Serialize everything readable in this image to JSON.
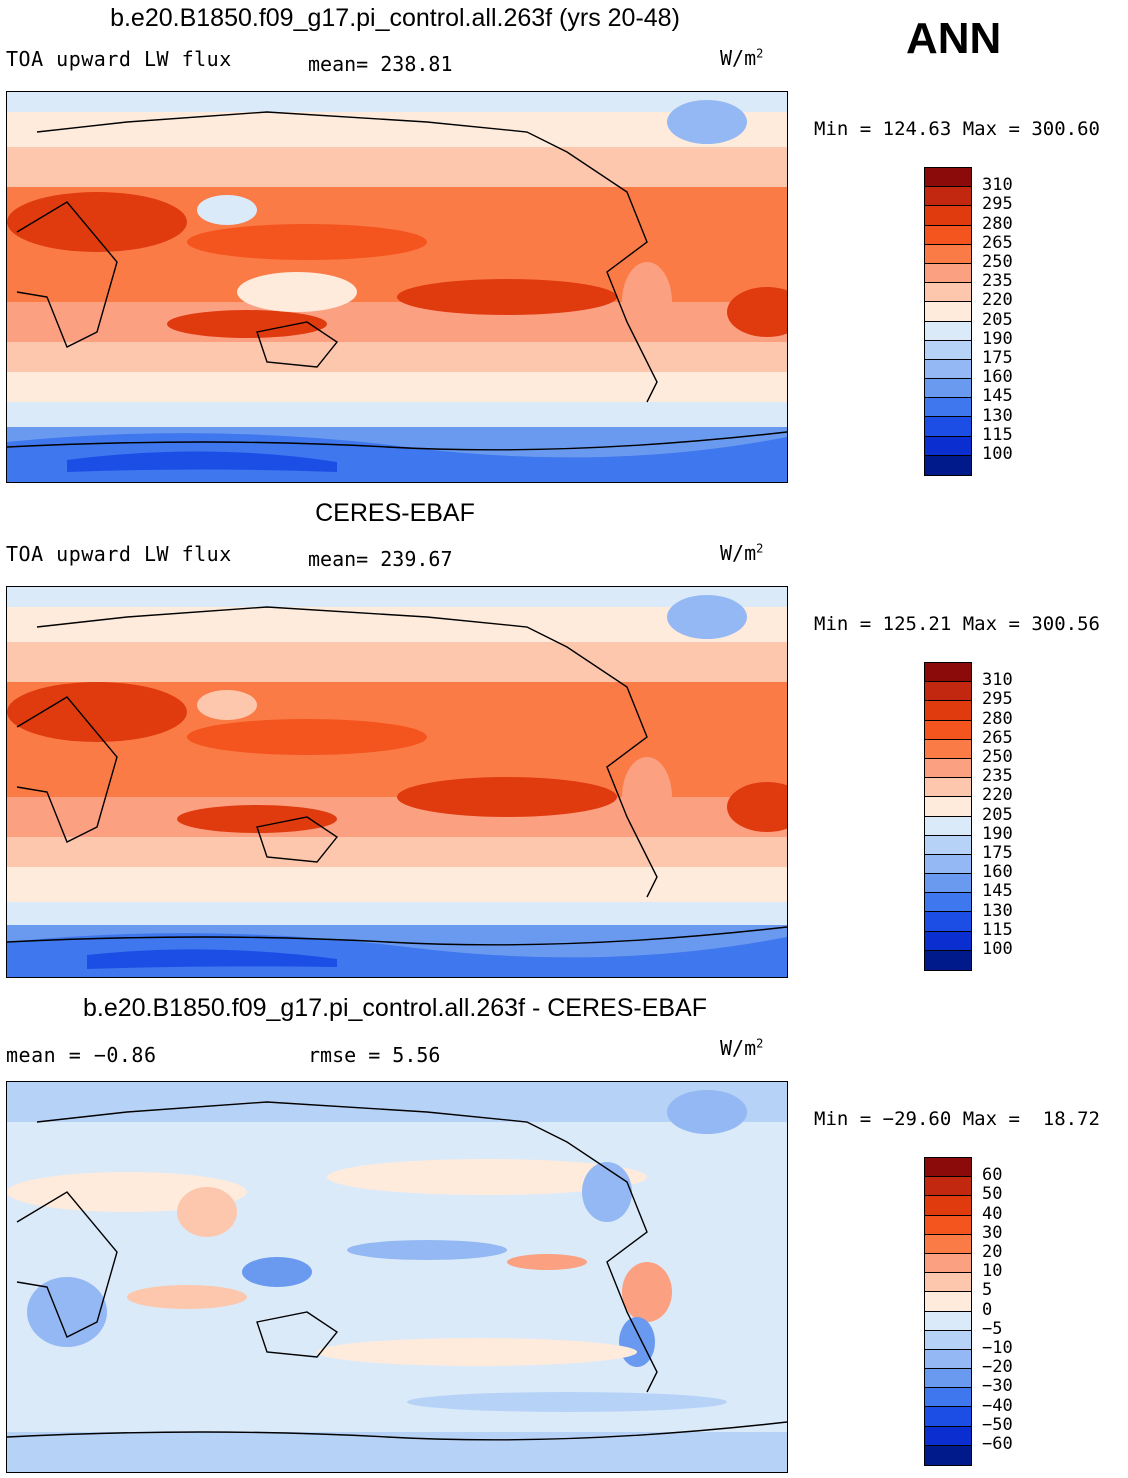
{
  "season": "ANN",
  "panels": [
    {
      "title": "b.e20.B1850.f09_g17.pi_control.all.263f (yrs 20-48)",
      "subtitle_left": "TOA upward LW flux",
      "subtitle_mid": "mean= 238.81",
      "units": "W/m",
      "units_sup": "2",
      "minmax": "Min = 124.63 Max = 300.60",
      "colorbar": {
        "colors": [
          "#8b0a0a",
          "#c1280f",
          "#e03a0f",
          "#f4541e",
          "#fb7b47",
          "#fca082",
          "#fdc7ad",
          "#feebdc",
          "#dbeaf9",
          "#b7d2f7",
          "#93b8f3",
          "#6a9af0",
          "#3f77ee",
          "#1c4ee6",
          "#0a2ed0",
          "#001a8b"
        ],
        "labels": [
          "310",
          "295",
          "280",
          "265",
          "250",
          "235",
          "220",
          "205",
          "190",
          "175",
          "160",
          "145",
          "130",
          "115",
          "100"
        ]
      }
    },
    {
      "title": "CERES-EBAF",
      "subtitle_left": "TOA upward LW flux",
      "subtitle_mid": "mean= 239.67",
      "units": "W/m",
      "units_sup": "2",
      "minmax": "Min = 125.21 Max = 300.56",
      "colorbar": {
        "colors": [
          "#8b0a0a",
          "#c1280f",
          "#e03a0f",
          "#f4541e",
          "#fb7b47",
          "#fca082",
          "#fdc7ad",
          "#feebdc",
          "#dbeaf9",
          "#b7d2f7",
          "#93b8f3",
          "#6a9af0",
          "#3f77ee",
          "#1c4ee6",
          "#0a2ed0",
          "#001a8b"
        ],
        "labels": [
          "310",
          "295",
          "280",
          "265",
          "250",
          "235",
          "220",
          "205",
          "190",
          "175",
          "160",
          "145",
          "130",
          "115",
          "100"
        ]
      }
    },
    {
      "title": "b.e20.B1850.f09_g17.pi_control.all.263f - CERES-EBAF",
      "subtitle_left": "mean =   −0.86",
      "subtitle_mid": "rmse =    5.56",
      "units": "W/m",
      "units_sup": "2",
      "minmax": "Min = −29.60 Max =  18.72",
      "colorbar": {
        "colors": [
          "#8b0a0a",
          "#c1280f",
          "#e03a0f",
          "#f4541e",
          "#fb7b47",
          "#fca082",
          "#fdc7ad",
          "#feebdc",
          "#dbeaf9",
          "#b7d2f7",
          "#93b8f3",
          "#6a9af0",
          "#3f77ee",
          "#1c4ee6",
          "#0a2ed0",
          "#001a8b"
        ],
        "labels": [
          "60",
          "50",
          "40",
          "30",
          "20",
          "10",
          "5",
          "0",
          "−5",
          "−10",
          "−20",
          "−30",
          "−40",
          "−50",
          "−60"
        ]
      }
    }
  ]
}
